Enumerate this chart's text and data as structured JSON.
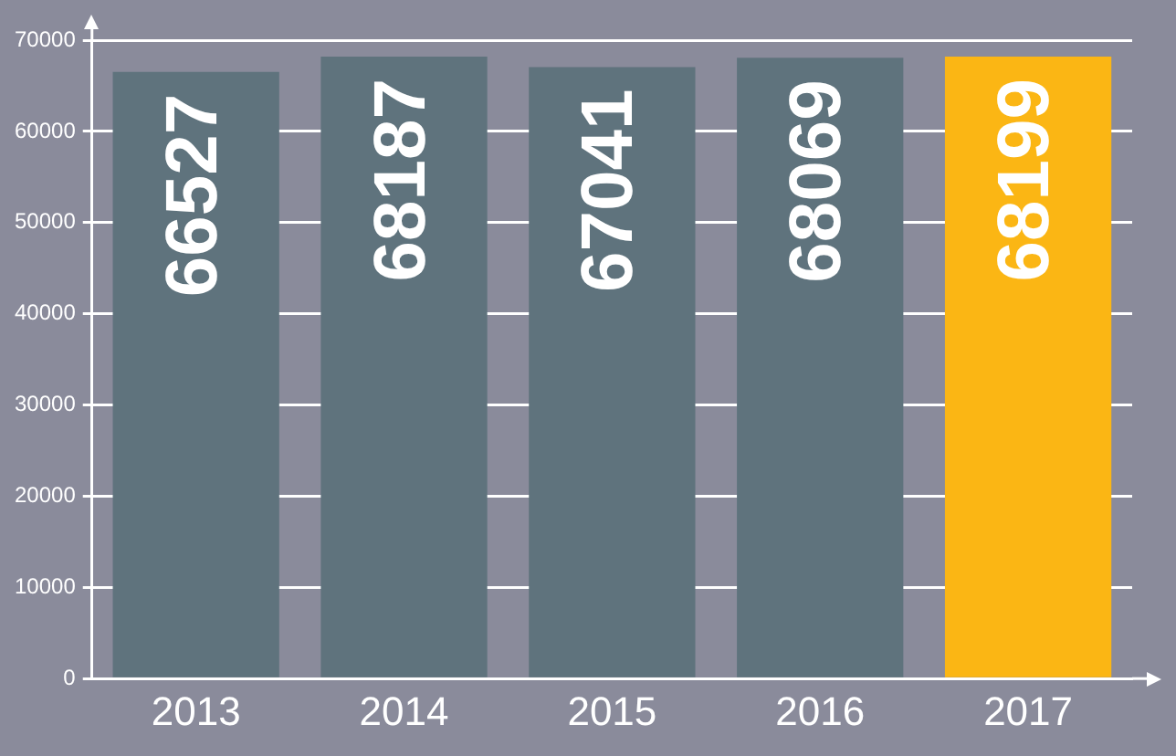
{
  "chart_data": {
    "type": "bar",
    "categories": [
      "2013",
      "2014",
      "2015",
      "2016",
      "2017"
    ],
    "values": [
      66527,
      68187,
      67041,
      68069,
      68199
    ],
    "colors": [
      "#5f737d",
      "#5f737d",
      "#5f737d",
      "#5f737d",
      "#fbb614"
    ],
    "ylim": [
      0,
      70000
    ],
    "yticks": [
      0,
      10000,
      20000,
      30000,
      40000,
      50000,
      60000,
      70000
    ],
    "grid": "y",
    "legend": false,
    "data_labels": true
  }
}
